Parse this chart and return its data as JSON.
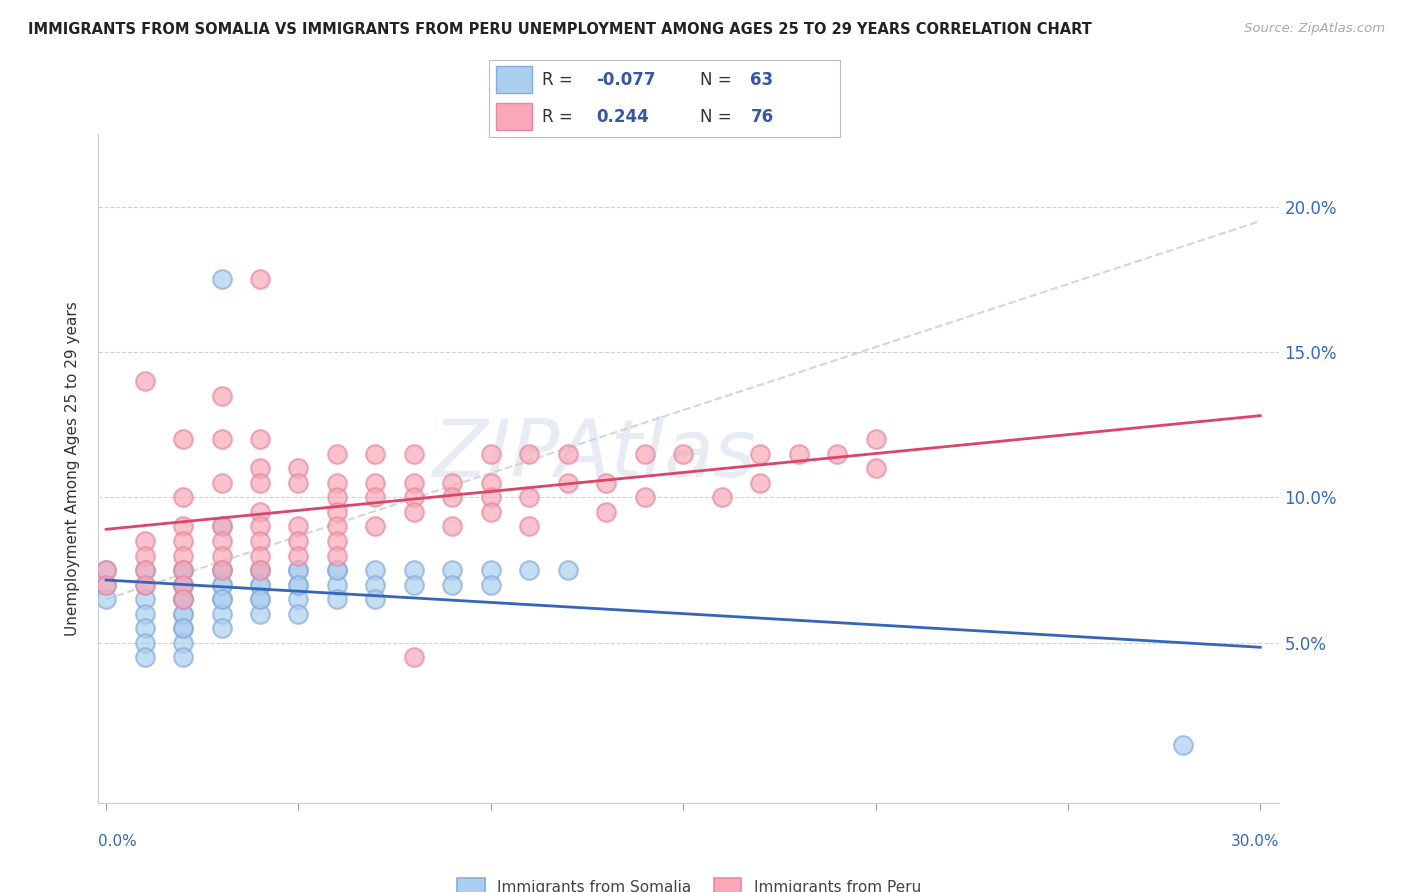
{
  "title": "IMMIGRANTS FROM SOMALIA VS IMMIGRANTS FROM PERU UNEMPLOYMENT AMONG AGES 25 TO 29 YEARS CORRELATION CHART",
  "source": "Source: ZipAtlas.com",
  "ylabel": "Unemployment Among Ages 25 to 29 years",
  "xlim": [
    -0.002,
    0.305
  ],
  "ylim": [
    -0.005,
    0.225
  ],
  "yticks_right": [
    0.05,
    0.1,
    0.15,
    0.2
  ],
  "yticklabels_right": [
    "5.0%",
    "10.0%",
    "15.0%",
    "20.0%"
  ],
  "somalia_color": "#aacfef",
  "somalia_edge": "#88aadd",
  "peru_color": "#f8a8b8",
  "peru_edge": "#e888a0",
  "somalia_R": -0.077,
  "somalia_N": 63,
  "peru_R": 0.244,
  "peru_N": 76,
  "somalia_line_color": "#3366bb",
  "peru_line_color": "#dd4466",
  "trend_line_color": "#cccccc",
  "watermark": "ZIPAtlas",
  "legend_label_somalia": "Immigrants from Somalia",
  "legend_label_peru": "Immigrants from Peru",
  "r_label_color": "#3355aa",
  "n_label_color": "#3355aa",
  "somalia_scatter_x": [
    0.0,
    0.0,
    0.0,
    0.01,
    0.01,
    0.01,
    0.01,
    0.01,
    0.01,
    0.01,
    0.02,
    0.02,
    0.02,
    0.02,
    0.02,
    0.02,
    0.02,
    0.02,
    0.02,
    0.02,
    0.02,
    0.02,
    0.02,
    0.02,
    0.03,
    0.03,
    0.03,
    0.03,
    0.03,
    0.03,
    0.03,
    0.03,
    0.03,
    0.04,
    0.04,
    0.04,
    0.04,
    0.04,
    0.04,
    0.04,
    0.05,
    0.05,
    0.05,
    0.05,
    0.05,
    0.05,
    0.06,
    0.06,
    0.06,
    0.06,
    0.07,
    0.07,
    0.07,
    0.08,
    0.08,
    0.09,
    0.09,
    0.1,
    0.1,
    0.11,
    0.12,
    0.28,
    0.03
  ],
  "somalia_scatter_y": [
    0.075,
    0.07,
    0.065,
    0.075,
    0.07,
    0.065,
    0.06,
    0.055,
    0.05,
    0.045,
    0.075,
    0.07,
    0.065,
    0.06,
    0.055,
    0.05,
    0.045,
    0.075,
    0.07,
    0.065,
    0.06,
    0.055,
    0.07,
    0.065,
    0.075,
    0.07,
    0.065,
    0.06,
    0.055,
    0.075,
    0.07,
    0.065,
    0.175,
    0.075,
    0.07,
    0.065,
    0.06,
    0.075,
    0.07,
    0.065,
    0.075,
    0.07,
    0.065,
    0.06,
    0.075,
    0.07,
    0.075,
    0.07,
    0.065,
    0.075,
    0.075,
    0.07,
    0.065,
    0.075,
    0.07,
    0.075,
    0.07,
    0.075,
    0.07,
    0.075,
    0.075,
    0.015,
    0.09
  ],
  "peru_scatter_x": [
    0.0,
    0.0,
    0.01,
    0.01,
    0.01,
    0.01,
    0.01,
    0.02,
    0.02,
    0.02,
    0.02,
    0.02,
    0.02,
    0.02,
    0.02,
    0.03,
    0.03,
    0.03,
    0.03,
    0.03,
    0.03,
    0.03,
    0.04,
    0.04,
    0.04,
    0.04,
    0.04,
    0.04,
    0.04,
    0.04,
    0.05,
    0.05,
    0.05,
    0.05,
    0.05,
    0.06,
    0.06,
    0.06,
    0.06,
    0.06,
    0.06,
    0.06,
    0.07,
    0.07,
    0.07,
    0.07,
    0.08,
    0.08,
    0.08,
    0.08,
    0.09,
    0.09,
    0.09,
    0.1,
    0.1,
    0.1,
    0.1,
    0.11,
    0.11,
    0.11,
    0.12,
    0.12,
    0.13,
    0.13,
    0.14,
    0.14,
    0.15,
    0.16,
    0.17,
    0.17,
    0.18,
    0.19,
    0.2,
    0.2,
    0.04,
    0.08
  ],
  "peru_scatter_y": [
    0.075,
    0.07,
    0.14,
    0.085,
    0.08,
    0.075,
    0.07,
    0.12,
    0.1,
    0.09,
    0.085,
    0.08,
    0.075,
    0.07,
    0.065,
    0.135,
    0.12,
    0.105,
    0.09,
    0.085,
    0.08,
    0.075,
    0.12,
    0.11,
    0.105,
    0.095,
    0.09,
    0.085,
    0.08,
    0.075,
    0.11,
    0.105,
    0.09,
    0.085,
    0.08,
    0.115,
    0.105,
    0.1,
    0.095,
    0.09,
    0.085,
    0.08,
    0.115,
    0.105,
    0.1,
    0.09,
    0.115,
    0.105,
    0.1,
    0.095,
    0.105,
    0.1,
    0.09,
    0.115,
    0.105,
    0.1,
    0.095,
    0.115,
    0.1,
    0.09,
    0.115,
    0.105,
    0.105,
    0.095,
    0.115,
    0.1,
    0.115,
    0.1,
    0.115,
    0.105,
    0.115,
    0.115,
    0.12,
    0.11,
    0.175,
    0.045
  ]
}
